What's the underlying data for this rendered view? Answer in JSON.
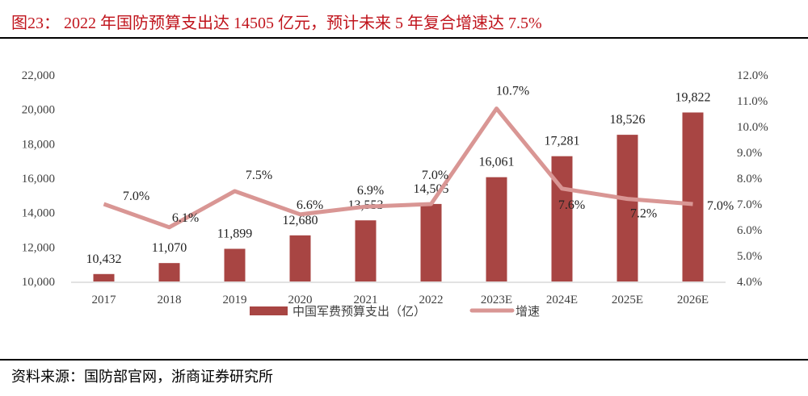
{
  "title": "图23： 2022 年国防预算支出达 14505 亿元，预计未来 5 年复合增速达 7.5%",
  "source": "资料来源：国防部官网，浙商证券研究所",
  "chart_data": {
    "type": "bar+line",
    "categories": [
      "2017",
      "2018",
      "2019",
      "2020",
      "2021",
      "2022",
      "2023E",
      "2024E",
      "2025E",
      "2026E"
    ],
    "series": [
      {
        "name": "中国军费预算支出（亿）",
        "type": "bar",
        "axis": "left",
        "color": "#a84543",
        "values": [
          10432,
          11070,
          11899,
          12680,
          13553,
          14505,
          16061,
          17281,
          18526,
          19822
        ],
        "labels": [
          "10,432",
          "11,070",
          "11,899",
          "12,680",
          "13,553",
          "14,505",
          "16,061",
          "17,281",
          "18,526",
          "19,822"
        ]
      },
      {
        "name": "增速",
        "type": "line",
        "axis": "right",
        "color": "#d99694",
        "values": [
          7.0,
          6.1,
          7.5,
          6.6,
          6.9,
          7.0,
          10.7,
          7.6,
          7.2,
          7.0
        ],
        "labels": [
          "7.0%",
          "6.1%",
          "7.5%",
          "6.6%",
          "6.9%",
          "7.0%",
          "10.7%",
          "7.6%",
          "7.2%",
          "7.0%"
        ]
      }
    ],
    "left_axis": {
      "ylim": [
        10000,
        22000
      ],
      "ticks": [
        "10,000",
        "12,000",
        "14,000",
        "16,000",
        "18,000",
        "20,000",
        "22,000"
      ]
    },
    "right_axis": {
      "ylim": [
        4.0,
        12.0
      ],
      "ticks": [
        "4.0%",
        "5.0%",
        "6.0%",
        "7.0%",
        "8.0%",
        "9.0%",
        "10.0%",
        "11.0%",
        "12.0%"
      ]
    },
    "grid": false,
    "legend_position": "bottom"
  }
}
